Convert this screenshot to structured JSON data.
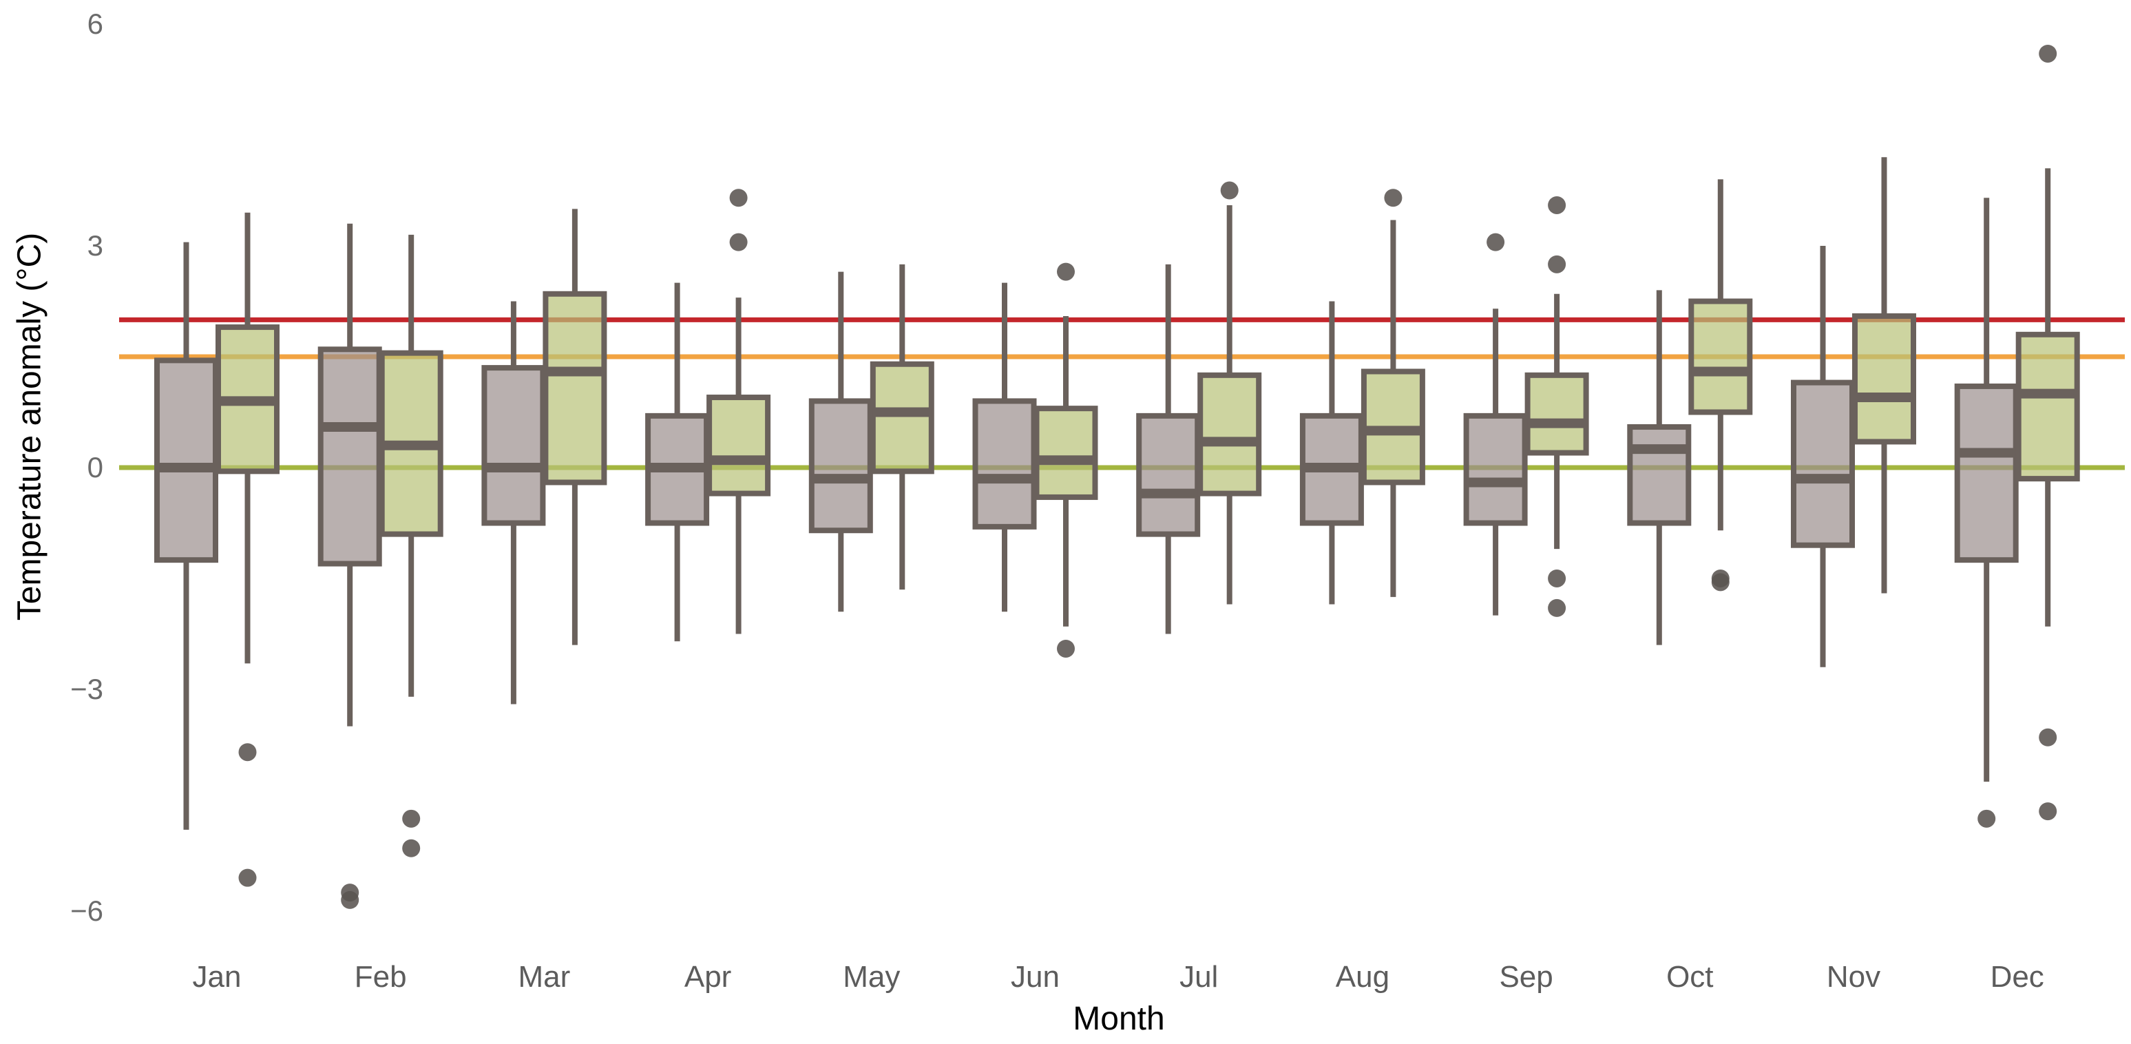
{
  "figure": {
    "background": "#ffffff"
  },
  "chart_data": {
    "type": "grouped_boxplot",
    "title": "",
    "xlabel": "Month",
    "ylabel": "Temperature anomaly (°C)",
    "categories": [
      "Jan",
      "Feb",
      "Mar",
      "Apr",
      "May",
      "Jun",
      "Jul",
      "Aug",
      "Sep",
      "Oct",
      "Nov",
      "Dec"
    ],
    "y_ticks": [
      {
        "v": 6,
        "label": "6"
      },
      {
        "v": 3,
        "label": "3"
      },
      {
        "v": 0,
        "label": "0"
      },
      {
        "v": -3,
        "label": "−3"
      },
      {
        "v": -6,
        "label": "−6"
      }
    ],
    "ylim": [
      -6.35,
      6.35
    ],
    "grid": "off",
    "legend": "none",
    "reference_lines": [
      {
        "y": 2.0,
        "color": "#c4262b",
        "name": "red-line"
      },
      {
        "y": 1.5,
        "color": "#f2a341",
        "name": "orange-line"
      },
      {
        "y": 0.0,
        "color": "#a3b63f",
        "name": "olive-line"
      }
    ],
    "series": [
      {
        "name": "gray",
        "fill": "rgba(155,143,141,0.7)",
        "boxes": [
          {
            "month": "Jan",
            "low": -4.9,
            "q1": -1.25,
            "median": 0.0,
            "q3": 1.45,
            "high": 3.05,
            "outliers": []
          },
          {
            "month": "Feb",
            "low": -3.5,
            "q1": -1.3,
            "median": 0.55,
            "q3": 1.6,
            "high": 3.3,
            "outliers": [
              -5.75,
              -5.85
            ]
          },
          {
            "month": "Mar",
            "low": -3.2,
            "q1": -0.75,
            "median": 0.0,
            "q3": 1.35,
            "high": 2.25,
            "outliers": []
          },
          {
            "month": "Apr",
            "low": -2.35,
            "q1": -0.75,
            "median": 0.0,
            "q3": 0.7,
            "high": 2.5,
            "outliers": []
          },
          {
            "month": "May",
            "low": -1.95,
            "q1": -0.85,
            "median": -0.15,
            "q3": 0.9,
            "high": 2.65,
            "outliers": []
          },
          {
            "month": "Jun",
            "low": -1.95,
            "q1": -0.8,
            "median": -0.15,
            "q3": 0.9,
            "high": 2.5,
            "outliers": []
          },
          {
            "month": "Jul",
            "low": -2.25,
            "q1": -0.9,
            "median": -0.35,
            "q3": 0.7,
            "high": 2.75,
            "outliers": []
          },
          {
            "month": "Aug",
            "low": -1.85,
            "q1": -0.75,
            "median": 0.0,
            "q3": 0.7,
            "high": 2.25,
            "outliers": []
          },
          {
            "month": "Sep",
            "low": -2.0,
            "q1": -0.75,
            "median": -0.2,
            "q3": 0.7,
            "high": 2.15,
            "outliers": [
              3.05
            ]
          },
          {
            "month": "Oct",
            "low": -2.4,
            "q1": -0.75,
            "median": 0.25,
            "q3": 0.55,
            "high": 2.4,
            "outliers": []
          },
          {
            "month": "Nov",
            "low": -2.7,
            "q1": -1.05,
            "median": -0.15,
            "q3": 1.15,
            "high": 3.0,
            "outliers": []
          },
          {
            "month": "Dec",
            "low": -4.25,
            "q1": -1.25,
            "median": 0.2,
            "q3": 1.1,
            "high": 3.65,
            "outliers": [
              -4.75
            ]
          }
        ]
      },
      {
        "name": "green",
        "fill": "rgba(184,194,119,0.7)",
        "boxes": [
          {
            "month": "Jan",
            "low": -2.65,
            "q1": -0.05,
            "median": 0.9,
            "q3": 1.9,
            "high": 3.45,
            "outliers": [
              -3.85,
              -5.55
            ]
          },
          {
            "month": "Feb",
            "low": -3.1,
            "q1": -0.9,
            "median": 0.3,
            "q3": 1.55,
            "high": 3.15,
            "outliers": [
              -4.75,
              -5.15
            ]
          },
          {
            "month": "Mar",
            "low": -2.4,
            "q1": -0.2,
            "median": 1.3,
            "q3": 2.35,
            "high": 3.5,
            "outliers": []
          },
          {
            "month": "Apr",
            "low": -2.25,
            "q1": -0.35,
            "median": 0.1,
            "q3": 0.95,
            "high": 2.3,
            "outliers": [
              3.65,
              3.05
            ]
          },
          {
            "month": "May",
            "low": -1.65,
            "q1": -0.05,
            "median": 0.75,
            "q3": 1.4,
            "high": 2.75,
            "outliers": []
          },
          {
            "month": "Jun",
            "low": -2.15,
            "q1": -0.4,
            "median": 0.1,
            "q3": 0.8,
            "high": 2.05,
            "outliers": [
              2.65,
              -2.45
            ]
          },
          {
            "month": "Jul",
            "low": -1.85,
            "q1": -0.35,
            "median": 0.35,
            "q3": 1.25,
            "high": 3.55,
            "outliers": [
              3.75
            ]
          },
          {
            "month": "Aug",
            "low": -1.75,
            "q1": -0.2,
            "median": 0.5,
            "q3": 1.3,
            "high": 3.35,
            "outliers": [
              3.65
            ]
          },
          {
            "month": "Sep",
            "low": -1.1,
            "q1": 0.2,
            "median": 0.6,
            "q3": 1.25,
            "high": 2.35,
            "outliers": [
              3.55,
              2.75,
              -1.5,
              -1.9
            ]
          },
          {
            "month": "Oct",
            "low": -0.85,
            "q1": 0.75,
            "median": 1.3,
            "q3": 2.25,
            "high": 3.9,
            "outliers": [
              -1.5,
              -1.55
            ]
          },
          {
            "month": "Nov",
            "low": -1.7,
            "q1": 0.35,
            "median": 0.95,
            "q3": 2.05,
            "high": 4.2,
            "outliers": []
          },
          {
            "month": "Dec",
            "low": -2.15,
            "q1": -0.15,
            "median": 1.0,
            "q3": 1.8,
            "high": 4.05,
            "outliers": [
              5.6,
              -3.65,
              -4.65
            ]
          }
        ]
      }
    ],
    "style": {
      "box_stroke": "#6a615c",
      "outlier_dot": "rgba(90,84,81,0.88)",
      "y_tick_color": "#6b6b6b",
      "x_tick_color": "#5c5c5c",
      "axis_title_color": "#000000"
    }
  }
}
